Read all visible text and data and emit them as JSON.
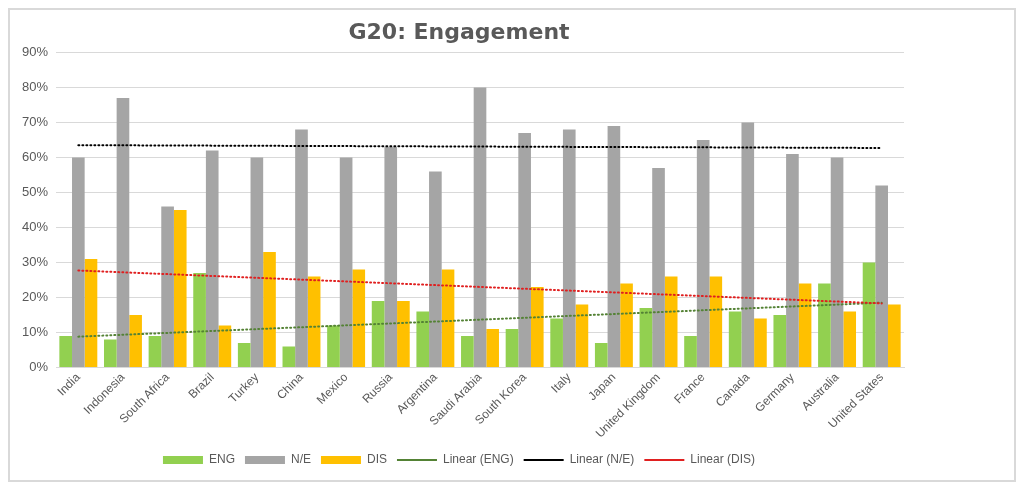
{
  "chart_data": {
    "type": "bar",
    "title": "G20: Engagement",
    "categories": [
      "India",
      "Indonesia",
      "South Africa",
      "Brazil",
      "Turkey",
      "China",
      "Mexico",
      "Russia",
      "Argentina",
      "Saudi Arabia",
      "South Korea",
      "Italy",
      "Japan",
      "United Kingdom",
      "France",
      "Canada",
      "Germany",
      "Australia",
      "United States"
    ],
    "series": [
      {
        "name": "ENG",
        "color": "#92d050",
        "values": [
          9,
          8,
          9,
          27,
          7,
          6,
          12,
          19,
          16,
          9,
          11,
          14,
          7,
          17,
          9,
          16,
          15,
          24,
          30
        ]
      },
      {
        "name": "N/E",
        "color": "#a5a5a5",
        "values": [
          60,
          77,
          46,
          62,
          60,
          68,
          60,
          63,
          56,
          80,
          67,
          68,
          69,
          57,
          65,
          70,
          61,
          60,
          52
        ]
      },
      {
        "name": "DIS",
        "color": "#ffc000",
        "values": [
          31,
          15,
          45,
          12,
          33,
          26,
          28,
          19,
          28,
          11,
          23,
          18,
          24,
          26,
          26,
          14,
          24,
          16,
          18
        ]
      },
      {
        "name": "Linear (ENG)",
        "type": "line",
        "color": "#548235",
        "line_style": "dotted",
        "x": [
          "India",
          "United States"
        ],
        "values": [
          8.8,
          18.5
        ]
      },
      {
        "name": "Linear (N/E)",
        "type": "line",
        "color": "#000000",
        "line_style": "dotted",
        "x": [
          "India",
          "United States"
        ],
        "values": [
          63.5,
          62.7
        ]
      },
      {
        "name": "Linear (DIS)",
        "type": "line",
        "color": "#e02020",
        "line_style": "dotted",
        "x": [
          "India",
          "United States"
        ],
        "values": [
          27.7,
          18.3
        ]
      }
    ],
    "ylim": [
      0,
      90
    ],
    "yticks": [
      {
        "value": 0,
        "label": "0%"
      },
      {
        "value": 10,
        "label": "10%"
      },
      {
        "value": 20,
        "label": "20%"
      },
      {
        "value": 30,
        "label": "30%"
      },
      {
        "value": 40,
        "label": "40%"
      },
      {
        "value": 50,
        "label": "50%"
      },
      {
        "value": 60,
        "label": "60%"
      },
      {
        "value": 70,
        "label": "70%"
      },
      {
        "value": 80,
        "label": "80%"
      },
      {
        "value": 90,
        "label": "90%"
      }
    ],
    "grid": "y",
    "legend": "bottom"
  }
}
